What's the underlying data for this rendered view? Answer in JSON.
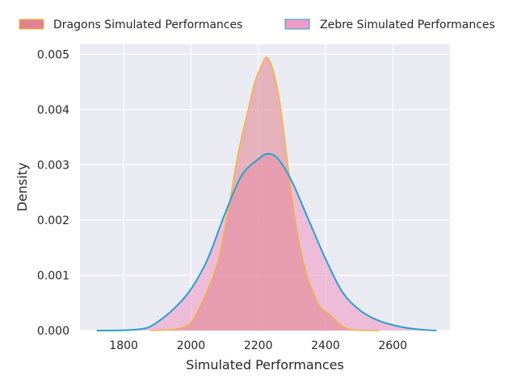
{
  "chart_data": {
    "type": "area",
    "title": "",
    "xlabel": "Simulated Performances",
    "ylabel": "Density",
    "xlim": [
      1670,
      2770
    ],
    "ylim": [
      0,
      0.00518
    ],
    "x_ticks": [
      1800,
      2000,
      2200,
      2400,
      2600
    ],
    "x_tick_labels": [
      "1800",
      "2000",
      "2200",
      "2400",
      "2600"
    ],
    "y_ticks": [
      0,
      0.001,
      0.002,
      0.003,
      0.004,
      0.005
    ],
    "y_tick_labels": [
      "0.000",
      "0.001",
      "0.002",
      "0.003",
      "0.004",
      "0.005"
    ],
    "grid": true,
    "legend_position": "top",
    "series": [
      {
        "name": "Dragons Simulated Performances",
        "fill": "#e0838f",
        "line": "#f5b431",
        "x": [
          1880,
          1950,
          1985,
          2000,
          2020,
          2050,
          2080,
          2110,
          2140,
          2170,
          2190,
          2210,
          2220,
          2230,
          2245,
          2265,
          2290,
          2310,
          2340,
          2370,
          2385,
          2400,
          2420,
          2445,
          2470,
          2500,
          2560
        ],
        "values": [
          0,
          2e-05,
          8e-05,
          0.00015,
          0.00035,
          0.00075,
          0.00125,
          0.00215,
          0.0032,
          0.004,
          0.0045,
          0.0048,
          0.00493,
          0.00492,
          0.0047,
          0.0041,
          0.0029,
          0.002,
          0.0011,
          0.0006,
          0.00042,
          0.00035,
          0.00025,
          0.0001,
          3e-05,
          5e-06,
          0
        ]
      },
      {
        "name": "Zebre Simulated Performances",
        "fill": "#ee9cc6",
        "line": "#2aa0cc",
        "x": [
          1720,
          1800,
          1840,
          1870,
          1900,
          1950,
          2000,
          2050,
          2100,
          2150,
          2200,
          2230,
          2260,
          2300,
          2350,
          2400,
          2450,
          2500,
          2550,
          2600,
          2650,
          2700,
          2730
        ],
        "values": [
          0,
          5e-06,
          2e-05,
          5e-05,
          0.00015,
          0.0004,
          0.00075,
          0.0013,
          0.0021,
          0.0028,
          0.0031,
          0.0032,
          0.0031,
          0.0027,
          0.002,
          0.0013,
          0.0007,
          0.00038,
          0.0002,
          0.0001,
          4e-05,
          1e-05,
          0
        ]
      }
    ]
  }
}
